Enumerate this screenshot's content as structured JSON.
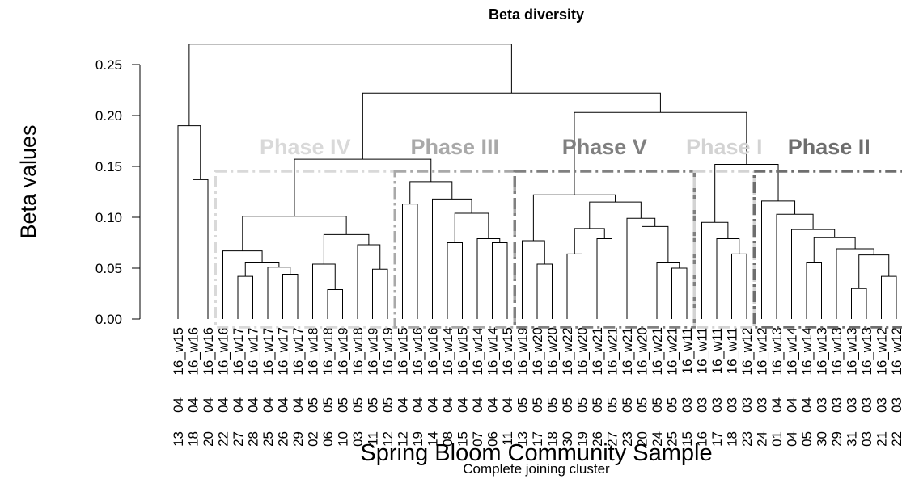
{
  "chart_data": {
    "type": "dendrogram",
    "title": "Beta diversity",
    "ylabel": "Beta values",
    "xlabel": "Spring Bloom Community Sample",
    "subtitle": "Complete joining cluster",
    "ylim": [
      0,
      0.27
    ],
    "yticks": [
      {
        "value": 0,
        "label": "0.00"
      },
      {
        "value": 0.05,
        "label": "0.05"
      },
      {
        "value": 0.1,
        "label": "0.10"
      },
      {
        "value": 0.15,
        "label": "0.15"
      },
      {
        "value": 0.2,
        "label": "0.20"
      },
      {
        "value": 0.25,
        "label": "0.25"
      }
    ],
    "color": "#000000",
    "leaves": [
      [
        "16_w15",
        "04",
        "13"
      ],
      [
        "16_w16",
        "04",
        "18"
      ],
      [
        "16_w16",
        "04",
        "20"
      ],
      [
        "16_w16",
        "04",
        "22"
      ],
      [
        "16_w17",
        "04",
        "27"
      ],
      [
        "16_w17",
        "04",
        "28"
      ],
      [
        "16_w17",
        "04",
        "25"
      ],
      [
        "16_w17",
        "04",
        "26"
      ],
      [
        "16_w17",
        "04",
        "29"
      ],
      [
        "16_w18",
        "05",
        "02"
      ],
      [
        "16_w18",
        "05",
        "06"
      ],
      [
        "16_w19",
        "05",
        "10"
      ],
      [
        "16_w18",
        "05",
        "03"
      ],
      [
        "16_w19",
        "05",
        "11"
      ],
      [
        "16_w19",
        "05",
        "12"
      ],
      [
        "16_w15",
        "04",
        "12"
      ],
      [
        "16_w16",
        "04",
        "19"
      ],
      [
        "16_w16",
        "04",
        "14"
      ],
      [
        "16_w14",
        "04",
        "08"
      ],
      [
        "16_w15",
        "04",
        "15"
      ],
      [
        "16_w14",
        "04",
        "07"
      ],
      [
        "16_w14",
        "04",
        "06"
      ],
      [
        "16_w15",
        "04",
        "11"
      ],
      [
        "16_w19",
        "05",
        "13"
      ],
      [
        "16_w20",
        "05",
        "17"
      ],
      [
        "16_w20",
        "05",
        "18"
      ],
      [
        "16_w22",
        "05",
        "30"
      ],
      [
        "16_w20",
        "05",
        "19"
      ],
      [
        "16_w21",
        "05",
        "26"
      ],
      [
        "16_w21",
        "05",
        "27"
      ],
      [
        "16_w21",
        "05",
        "23"
      ],
      [
        "16_w20",
        "05",
        "20"
      ],
      [
        "16_w21",
        "05",
        "24"
      ],
      [
        "16_w21",
        "05",
        "25"
      ],
      [
        "16_w11",
        "03",
        "15"
      ],
      [
        "16_w11",
        "03",
        "16"
      ],
      [
        "16_w11",
        "03",
        "17"
      ],
      [
        "16_w11",
        "03",
        "18"
      ],
      [
        "16_w12",
        "03",
        "23"
      ],
      [
        "16_w12",
        "03",
        "24"
      ],
      [
        "16_w13",
        "04",
        "01"
      ],
      [
        "16_w14",
        "04",
        "04"
      ],
      [
        "16_w14",
        "04",
        "05"
      ],
      [
        "16_w13",
        "03",
        "30"
      ],
      [
        "16_w13",
        "03",
        "29"
      ],
      [
        "16_w13",
        "03",
        "31"
      ],
      [
        "16_w13",
        "03",
        "03"
      ],
      [
        "16_w12",
        "03",
        "21"
      ],
      [
        "16_w12",
        "03",
        "22"
      ]
    ],
    "merge": [
      [
        -2,
        -3
      ],
      [
        -1,
        1
      ],
      [
        -5,
        -6
      ],
      [
        -8,
        -9
      ],
      [
        -7,
        4
      ],
      [
        3,
        5
      ],
      [
        -4,
        6
      ],
      [
        -11,
        -12
      ],
      [
        -10,
        8
      ],
      [
        -14,
        -15
      ],
      [
        -13,
        10
      ],
      [
        9,
        11
      ],
      [
        7,
        12
      ],
      [
        -16,
        -17
      ],
      [
        -19,
        -20
      ],
      [
        -22,
        -23
      ],
      [
        -21,
        16
      ],
      [
        15,
        17
      ],
      [
        -18,
        18
      ],
      [
        14,
        19
      ],
      [
        13,
        20
      ],
      [
        -25,
        -26
      ],
      [
        -24,
        22
      ],
      [
        -27,
        -28
      ],
      [
        -29,
        -30
      ],
      [
        24,
        25
      ],
      [
        -34,
        -35
      ],
      [
        -33,
        27
      ],
      [
        -32,
        28
      ],
      [
        -31,
        29
      ],
      [
        26,
        30
      ],
      [
        23,
        31
      ],
      [
        -38,
        -39
      ],
      [
        -37,
        33
      ],
      [
        -36,
        34
      ],
      [
        -46,
        -47
      ],
      [
        -48,
        -49
      ],
      [
        36,
        37
      ],
      [
        -45,
        38
      ],
      [
        -43,
        -44
      ],
      [
        40,
        39
      ],
      [
        -42,
        41
      ],
      [
        -41,
        42
      ],
      [
        -40,
        43
      ],
      [
        35,
        44
      ],
      [
        32,
        45
      ],
      [
        21,
        46
      ],
      [
        2,
        47
      ]
    ],
    "height": [
      0.137,
      0.19,
      0.042,
      0.044,
      0.051,
      0.056,
      0.067,
      0.029,
      0.054,
      0.049,
      0.073,
      0.083,
      0.101,
      0.113,
      0.075,
      0.075,
      0.079,
      0.104,
      0.118,
      0.135,
      0.157,
      0.054,
      0.077,
      0.064,
      0.079,
      0.089,
      0.05,
      0.056,
      0.091,
      0.099,
      0.115,
      0.122,
      0.064,
      0.079,
      0.095,
      0.03,
      0.042,
      0.063,
      0.069,
      0.056,
      0.08,
      0.088,
      0.103,
      0.116,
      0.152,
      0.203,
      0.222,
      0.27
    ],
    "phases": [
      {
        "label": "Phase IV",
        "color": "#d9d9d9",
        "first": 4,
        "last": 15
      },
      {
        "label": "Phase III",
        "color": "#a9a9a9",
        "first": 16,
        "last": 23
      },
      {
        "label": "Phase V",
        "color": "#808080",
        "first": 24,
        "last": 35
      },
      {
        "label": "Phase I",
        "color": "#d3d3d3",
        "first": 36,
        "last": 39
      },
      {
        "label": "Phase II",
        "color": "#6e6e6e",
        "first": 40,
        "last": 49
      }
    ]
  }
}
